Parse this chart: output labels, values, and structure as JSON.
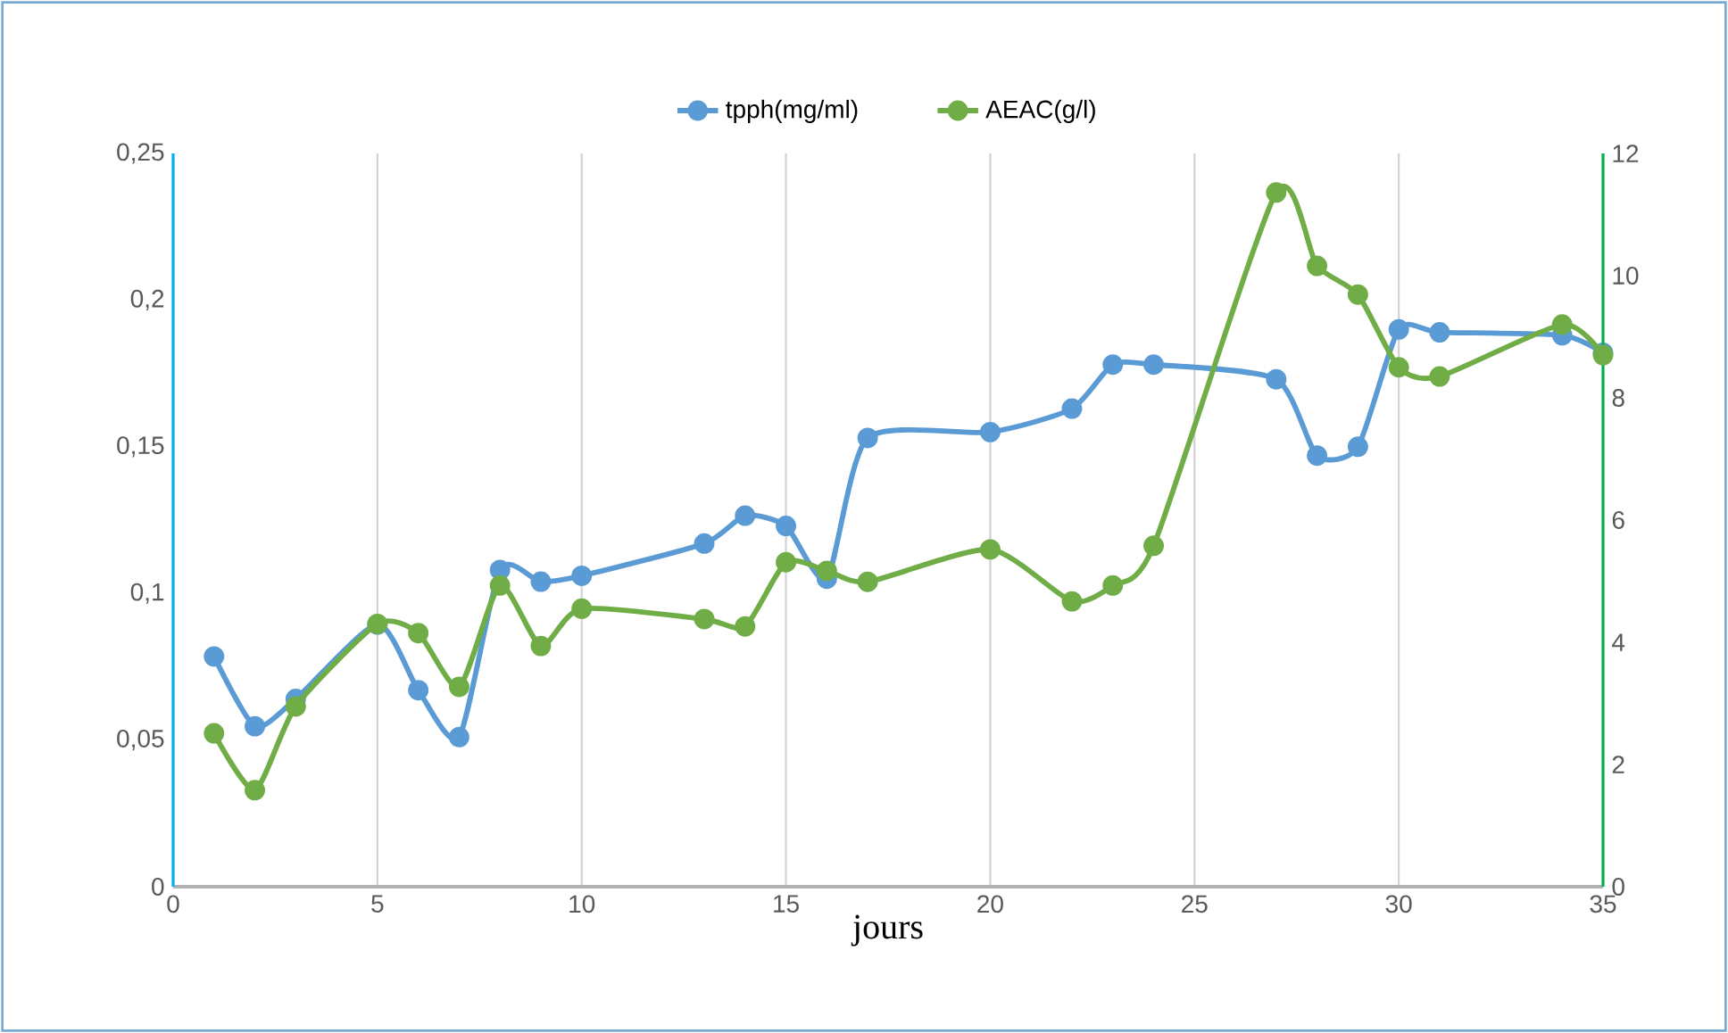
{
  "chart_data": {
    "type": "line",
    "xlabel": "jours",
    "x": [
      1,
      2,
      3,
      5,
      6,
      7,
      8,
      9,
      10,
      13,
      14,
      15,
      16,
      17,
      20,
      22,
      23,
      24,
      27,
      28,
      29,
      30,
      31,
      34,
      35
    ],
    "series": [
      {
        "name": "tpph(mg/ml)",
        "color": "#5b9bd5",
        "values": [
          0.0785,
          0.0547,
          0.064,
          0.0894,
          0.067,
          0.051,
          0.108,
          0.104,
          0.106,
          0.117,
          0.1265,
          0.123,
          0.105,
          0.153,
          0.155,
          0.163,
          0.178,
          0.178,
          0.173,
          0.147,
          0.15,
          0.19,
          0.189,
          0.188,
          0.182
        ]
      },
      {
        "name": "AEAC(g/l)",
        "color": "#70ad47",
        "axis": "y2",
        "values": [
          2.51,
          1.58,
          2.95,
          4.3,
          4.15,
          3.27,
          4.93,
          3.94,
          4.55,
          4.38,
          4.26,
          5.31,
          5.17,
          4.99,
          5.52,
          4.67,
          4.93,
          5.58,
          11.36,
          10.16,
          9.69,
          8.5,
          8.35,
          9.2,
          8.7
        ]
      }
    ],
    "xlim": [
      0,
      35
    ],
    "xticks": [
      0,
      5,
      10,
      15,
      20,
      25,
      30,
      35
    ],
    "ylim": [
      0,
      0.25
    ],
    "yticks": [
      0,
      {
        "value": 0.05,
        "label": "0,05"
      },
      {
        "value": 0.1,
        "label": "0,1"
      },
      {
        "value": 0.15,
        "label": "0,15"
      },
      {
        "value": 0.2,
        "label": "0,2"
      },
      {
        "value": 0.25,
        "label": "0,25"
      }
    ],
    "y2lim": [
      0,
      12
    ],
    "y2ticks": [
      0,
      2,
      4,
      6,
      8,
      10,
      12
    ],
    "grid": "x",
    "legend": "top",
    "marker": "circle",
    "line_style": "solid"
  }
}
